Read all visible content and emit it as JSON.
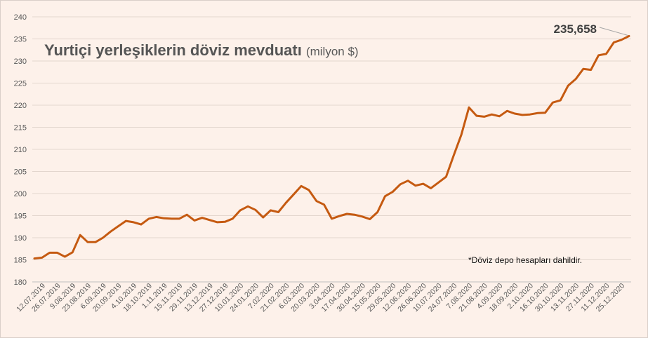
{
  "chart_data": {
    "type": "line",
    "title": "Yurtiçi yerleşiklerin döviz mevduatı",
    "title_unit": "(milyon $)",
    "note": "*Döviz depo hesapları dahildir.",
    "last_value_label": "235,658",
    "ylim": [
      180,
      240
    ],
    "yticks": [
      180,
      185,
      190,
      195,
      200,
      205,
      210,
      215,
      220,
      225,
      230,
      235,
      240
    ],
    "grid": true,
    "line_color": "#c55a11",
    "x_tick_labels": [
      "12.07.2019",
      "26.07.2019",
      "9.08.2019",
      "23.08.2019",
      "6.09.2019",
      "20.09.2019",
      "4.10.2019",
      "18.10.2019",
      "1.11.2019",
      "15.11.2019",
      "29.11.2019",
      "13.12.2019",
      "27.12.2019",
      "10.01.2020",
      "24.01.2020",
      "7.02.2020",
      "21.02.2020",
      "6.03.2020",
      "20.03.2020",
      "3.04.2020",
      "17.04.2020",
      "30.04.2020",
      "15.05.2020",
      "29.05.2020",
      "12.06.2020",
      "26.06.2020",
      "10.07.2020",
      "24.07.2020",
      "7.08.2020",
      "21.08.2020",
      "4.09.2020",
      "18.09.2020",
      "2.10.2020",
      "16.10.2020",
      "30.10.2020",
      "13.11.2020",
      "27.11.2020",
      "11.12.2020",
      "25.12.2020"
    ],
    "series": [
      {
        "values": [
          185.3,
          185.5,
          186.6,
          186.6,
          185.7,
          186.7,
          190.6,
          189.0,
          189.0,
          190.0,
          191.4,
          192.6,
          193.8,
          193.5,
          193.0,
          194.3,
          194.7,
          194.4,
          194.3,
          194.3,
          195.2,
          193.9,
          194.5,
          194.0,
          193.5,
          193.6,
          194.3,
          196.2,
          197.1,
          196.3,
          194.6,
          196.2,
          195.8,
          197.9,
          199.8,
          201.7,
          200.8,
          198.3,
          197.5,
          194.3,
          194.9,
          195.4,
          195.2,
          194.8,
          194.2,
          195.8,
          199.4,
          200.4,
          202.1,
          202.9,
          201.8,
          202.2,
          201.2,
          202.5,
          203.8,
          208.6,
          213.3,
          219.5,
          217.6,
          217.4,
          217.9,
          217.5,
          218.7,
          218.1,
          217.8,
          217.9,
          218.2,
          218.3,
          220.6,
          221.1,
          224.4,
          225.9,
          228.2,
          228.0,
          231.3,
          231.6,
          234.2,
          234.8,
          235.658
        ]
      }
    ]
  }
}
